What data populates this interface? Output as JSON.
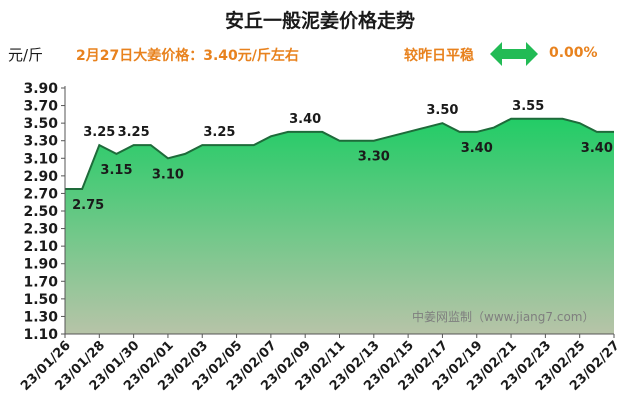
{
  "header": {
    "title": "安丘一般泥姜价格走势",
    "unit": "元/斤",
    "price_info": "2月27日大姜价格：3.40元/斤左右",
    "trend_label": "较昨日平稳",
    "trend_icon": "double-arrow-icon",
    "change": "0.00%"
  },
  "watermark": "中姜网监制（www.jiang7.com）",
  "colors": {
    "accent_orange": "#e8821e",
    "line": "#1e6b3a",
    "fill_top": "#22cc66",
    "fill_bottom": "#b7c4a8",
    "arrow": "#22bb55"
  },
  "chart_data": {
    "type": "area",
    "title": "安丘一般泥姜价格走势",
    "ylabel": "元/斤",
    "ylim": [
      1.1,
      3.9
    ],
    "yticks": [
      "1.10",
      "1.30",
      "1.50",
      "1.70",
      "1.90",
      "2.10",
      "2.30",
      "2.50",
      "2.70",
      "2.90",
      "3.10",
      "3.30",
      "3.50",
      "3.70",
      "3.90"
    ],
    "xtick_labels": [
      "23/01/26",
      "23/01/28",
      "23/01/30",
      "23/02/01",
      "23/02/03",
      "23/02/05",
      "23/02/07",
      "23/02/09",
      "23/02/11",
      "23/02/13",
      "23/02/15",
      "23/02/17",
      "23/02/19",
      "23/02/21",
      "23/02/23",
      "23/02/25",
      "23/02/27"
    ],
    "x": [
      "23/01/26",
      "23/01/27",
      "23/01/28",
      "23/01/29",
      "23/01/30",
      "23/01/31",
      "23/02/01",
      "23/02/02",
      "23/02/03",
      "23/02/04",
      "23/02/05",
      "23/02/06",
      "23/02/07",
      "23/02/08",
      "23/02/09",
      "23/02/10",
      "23/02/11",
      "23/02/12",
      "23/02/13",
      "23/02/14",
      "23/02/15",
      "23/02/16",
      "23/02/17",
      "23/02/18",
      "23/02/19",
      "23/02/20",
      "23/02/21",
      "23/02/22",
      "23/02/23",
      "23/02/24",
      "23/02/25",
      "23/02/26",
      "23/02/27"
    ],
    "values": [
      2.75,
      2.75,
      3.25,
      3.15,
      3.25,
      3.25,
      3.1,
      3.15,
      3.25,
      3.25,
      3.25,
      3.25,
      3.35,
      3.4,
      3.4,
      3.4,
      3.3,
      3.3,
      3.3,
      3.35,
      3.4,
      3.45,
      3.5,
      3.4,
      3.4,
      3.45,
      3.55,
      3.55,
      3.55,
      3.55,
      3.5,
      3.4,
      3.4
    ],
    "data_labels": [
      {
        "index": 1,
        "text": "2.75",
        "pos": "below"
      },
      {
        "index": 2,
        "text": "3.25",
        "pos": "above"
      },
      {
        "index": 3,
        "text": "3.15",
        "pos": "below"
      },
      {
        "index": 4,
        "text": "3.25",
        "pos": "above"
      },
      {
        "index": 6,
        "text": "3.10",
        "pos": "below"
      },
      {
        "index": 9,
        "text": "3.25",
        "pos": "above"
      },
      {
        "index": 14,
        "text": "3.40",
        "pos": "above"
      },
      {
        "index": 18,
        "text": "3.30",
        "pos": "below"
      },
      {
        "index": 22,
        "text": "3.50",
        "pos": "above"
      },
      {
        "index": 24,
        "text": "3.40",
        "pos": "below"
      },
      {
        "index": 27,
        "text": "3.55",
        "pos": "above"
      },
      {
        "index": 31,
        "text": "3.40",
        "pos": "below"
      }
    ],
    "grid": false,
    "legend": "none"
  }
}
